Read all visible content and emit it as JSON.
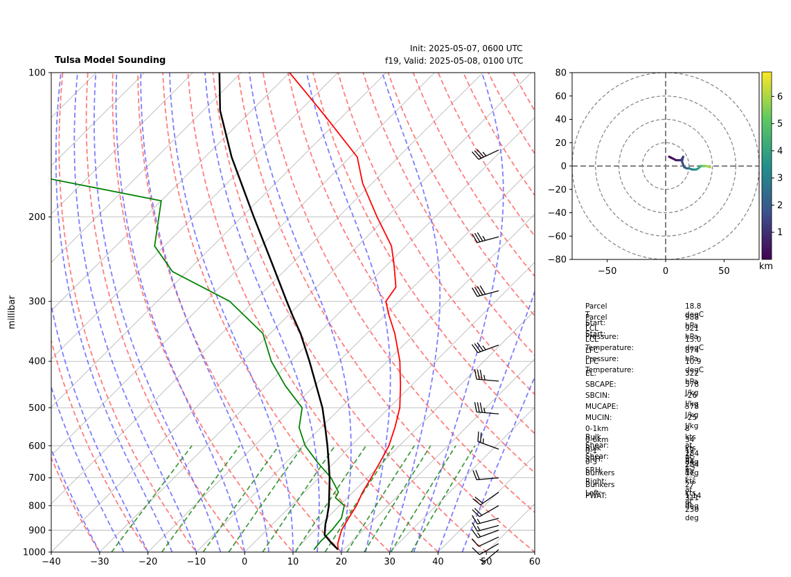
{
  "header": {
    "title": "Tulsa Model Sounding",
    "init": "Init: 2025-05-07, 0600 UTC",
    "valid": "f19, Valid: 2025-05-08, 0100 UTC"
  },
  "chart_data": [
    {
      "type": "line",
      "subtype": "skew-t log-p",
      "ylabel": "millibar",
      "xlabel": "",
      "xlim": [
        -40,
        60
      ],
      "ylim": [
        1000,
        100
      ],
      "yscale": "log",
      "xticks": [
        -40,
        -30,
        -20,
        -10,
        0,
        10,
        20,
        30,
        40,
        50,
        60
      ],
      "yticks": [
        1000,
        900,
        800,
        700,
        600,
        500,
        400,
        300,
        200,
        100
      ],
      "grid": true,
      "colors": {
        "temperature": "#ff0000",
        "dewpoint": "#008000",
        "parcel": "#000000",
        "dry_adiabats": "#ff6666",
        "moist_adiabats": "#6666ff",
        "mixing_ratio": "#228b22",
        "isotherms": "#b0b0b0"
      },
      "series": [
        {
          "role": "temperature",
          "pressure": [
            988,
            960,
            900,
            850,
            800,
            750,
            700,
            650,
            600,
            550,
            500,
            450,
            400,
            350,
            320,
            300,
            280,
            250,
            230,
            200,
            170,
            150,
            125,
            110,
            100
          ],
          "values": [
            18.8,
            17.5,
            15.5,
            14.5,
            13.5,
            12.0,
            10.8,
            9.4,
            7.8,
            5.3,
            2.2,
            -2.2,
            -7.4,
            -14.2,
            -19.3,
            -22.7,
            -23.6,
            -28.9,
            -33.0,
            -42.0,
            -52.0,
            -58.5,
            -72.5,
            -82.5,
            -90.0
          ]
        },
        {
          "role": "dewpoint",
          "pressure": [
            988,
            950,
            900,
            850,
            800,
            770,
            750,
            700,
            650,
            600,
            550,
            500,
            450,
            400,
            350,
            300,
            260,
            230,
            185,
            160,
            100
          ],
          "values": [
            13.8,
            13.5,
            13.5,
            13.0,
            11.0,
            7.5,
            7.0,
            2.5,
            -3.5,
            -9.5,
            -14.5,
            -18.0,
            -26.0,
            -34.0,
            -41.5,
            -55.0,
            -73.0,
            -82.0,
            -90.0,
            -128.0,
            -140.0
          ]
        },
        {
          "role": "parcel",
          "pressure": [
            988,
            960,
            921,
            874,
            850,
            800,
            750,
            700,
            650,
            600,
            550,
            500,
            450,
            400,
            350,
            322,
            300,
            250,
            200,
            150,
            120,
            100
          ],
          "values": [
            18.8,
            16.3,
            13.0,
            10.9,
            10.0,
            7.8,
            5.1,
            2.2,
            -1.2,
            -4.9,
            -9.1,
            -13.8,
            -19.6,
            -26.1,
            -33.7,
            -38.9,
            -43.2,
            -54.1,
            -67.5,
            -84.5,
            -96.5,
            -104.5
          ]
        }
      ],
      "wind_barbs": [
        {
          "pressure": 988,
          "speed_kts": 5,
          "direction_deg": 230
        },
        {
          "pressure": 960,
          "speed_kts": 8,
          "direction_deg": 240
        },
        {
          "pressure": 930,
          "speed_kts": 10,
          "direction_deg": 245
        },
        {
          "pressure": 900,
          "speed_kts": 13,
          "direction_deg": 250
        },
        {
          "pressure": 880,
          "speed_kts": 15,
          "direction_deg": 255
        },
        {
          "pressure": 850,
          "speed_kts": 15,
          "direction_deg": 255
        },
        {
          "pressure": 800,
          "speed_kts": 18,
          "direction_deg": 240
        },
        {
          "pressure": 750,
          "speed_kts": 20,
          "direction_deg": 235
        },
        {
          "pressure": 700,
          "speed_kts": 20,
          "direction_deg": 265
        },
        {
          "pressure": 610,
          "speed_kts": 25,
          "direction_deg": 290
        },
        {
          "pressure": 515,
          "speed_kts": 35,
          "direction_deg": 275
        },
        {
          "pressure": 440,
          "speed_kts": 35,
          "direction_deg": 275
        },
        {
          "pressure": 370,
          "speed_kts": 35,
          "direction_deg": 250
        },
        {
          "pressure": 285,
          "speed_kts": 40,
          "direction_deg": 255
        },
        {
          "pressure": 220,
          "speed_kts": 35,
          "direction_deg": 255
        },
        {
          "pressure": 145,
          "speed_kts": 35,
          "direction_deg": 245
        }
      ]
    },
    {
      "type": "line",
      "subtype": "hodograph",
      "xlim": [
        -80,
        80
      ],
      "ylim": [
        -80,
        80
      ],
      "xticks": [
        -50,
        0,
        50
      ],
      "yticks": [
        -80,
        -60,
        -40,
        -20,
        0,
        20,
        40,
        60,
        80
      ],
      "rings": [
        20,
        40,
        60,
        80
      ],
      "colorbar_label": "km",
      "colorbar_ticks": [
        1,
        2,
        3,
        4,
        5,
        6
      ],
      "colorbar_range": [
        0,
        6.9
      ],
      "colormap": [
        "#440154",
        "#3b528b",
        "#21918c",
        "#5ec962",
        "#fde725"
      ],
      "u": [
        3,
        5,
        7,
        9,
        11,
        13,
        14,
        15,
        14,
        15,
        16,
        18,
        20,
        23,
        26,
        28,
        30,
        32,
        35,
        38
      ],
      "v": [
        8,
        7,
        6,
        5,
        5,
        5,
        6,
        8,
        4,
        1,
        -1,
        -2,
        -2,
        -3,
        -3,
        -2,
        0,
        0,
        0,
        -1
      ],
      "height_km": [
        0.0,
        0.2,
        0.4,
        0.6,
        0.8,
        1.0,
        1.2,
        1.4,
        1.6,
        1.8,
        2.0,
        2.4,
        2.8,
        3.2,
        3.6,
        4.0,
        4.6,
        5.3,
        6.0,
        6.9
      ]
    }
  ],
  "stats": [
    {
      "label": "Parcel T Start:",
      "value": "18.8 degC"
    },
    {
      "label": "Parcel P Start:",
      "value": "988 hPa"
    },
    {
      "label": "LCL Pressure:",
      "value": "921 hPa"
    },
    {
      "label": "LCL Temperature:",
      "value": "13.0 degC"
    },
    {
      "label": "LFC Pressure:",
      "value": "874 hPa"
    },
    {
      "label": "LFC Temperature:",
      "value": "10.9 degC"
    },
    {
      "label": "EL:",
      "value": "322 hPa"
    },
    {
      "label": "SBCAPE:",
      "value": "578 J/kg"
    },
    {
      "label": "SBCIN:",
      "value": "-26 J/kg"
    },
    {
      "label": "MUCAPE:",
      "value": "578 J/kg"
    },
    {
      "label": "MUCIN:",
      "value": "-25 J/kg"
    },
    {
      "label": "0-1km Bulk Shear:",
      "value": "8 kts at 284 deg"
    },
    {
      "label": "0-6km Bulk Shear:",
      "value": "34 kts at 284 deg"
    },
    {
      "label": "0-1 SRH:",
      "value": "17 m² s⁻²"
    },
    {
      "label": "0-3 SRH:",
      "value": "34 m² s⁻²"
    },
    {
      "label": "Bunkers Right:",
      "value": "17 kts at 311 deg"
    },
    {
      "label": "Bunkers Left:",
      "value": "27 kts at 230 deg"
    },
    {
      "label": "PWAT:",
      "value": "1.14 in"
    }
  ]
}
